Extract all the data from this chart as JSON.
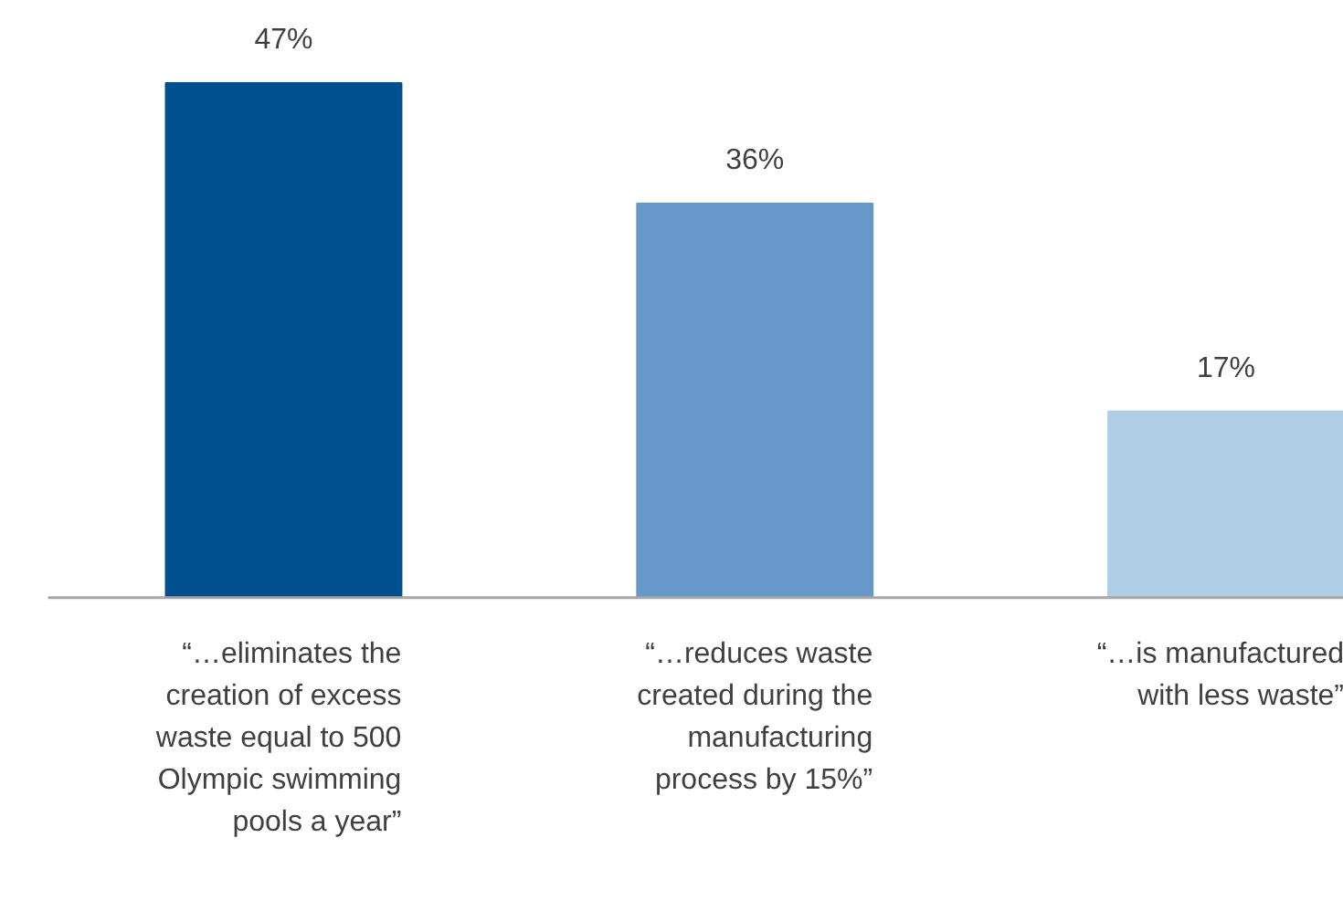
{
  "chart_data": {
    "type": "bar",
    "categories": [
      "“…eliminates the\ncreation of excess\nwaste equal to 500\nOlympic swimming\npools a year”",
      "“…reduces waste\ncreated during the\nmanufacturing\nprocess by 15%”",
      "“…is manufactured\nwith less waste”"
    ],
    "values": [
      47,
      36,
      17
    ],
    "colors": [
      "#00508f",
      "#6699c9",
      "#b0cde6"
    ],
    "value_labels": [
      "47%",
      "36%",
      "17%"
    ]
  }
}
